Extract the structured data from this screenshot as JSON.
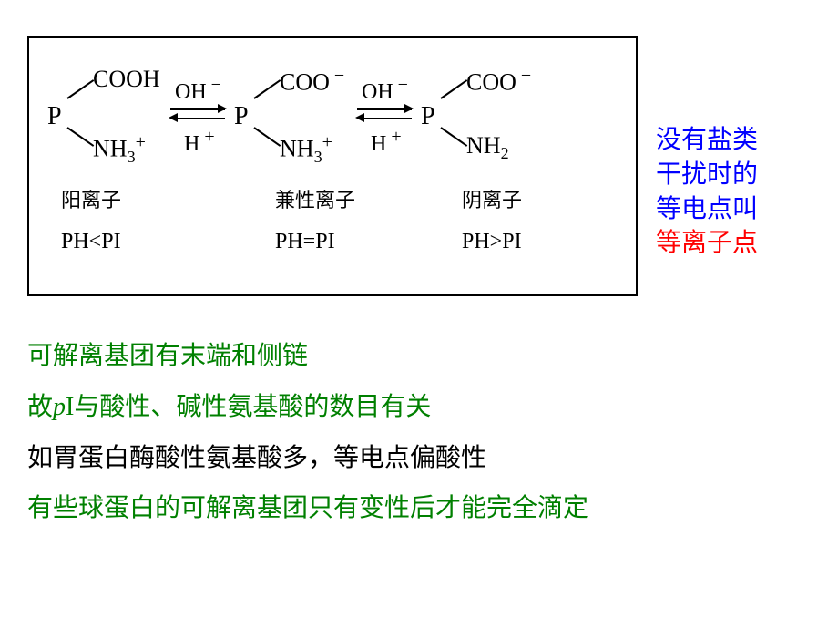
{
  "diagram": {
    "species": [
      {
        "p_label": "P",
        "upper_group": "COOH",
        "lower_group_html": "NH<span class='sub'>3</span><span class='sup'>+</span>",
        "ion_name": "阳离子",
        "ph_relation": "PH<PI"
      },
      {
        "p_label": "P",
        "upper_group_html": "COO<span class='sup'>&nbsp;−</span>",
        "lower_group_html": "NH<span class='sub'>3</span><span class='sup'>+</span>",
        "ion_name": "兼性离子",
        "ph_relation": "PH=PI"
      },
      {
        "p_label": "P",
        "upper_group_html": "COO<span class='sup'>&nbsp;−</span>",
        "lower_group_html": "NH<span class='sub'>2</span>",
        "ion_name": "阴离子",
        "ph_relation": "PH>PI"
      }
    ],
    "equilibrium": {
      "top_label_html": "OH<span class='sup'>&nbsp;−</span>",
      "bottom_label_html": "H<span class='sup'>&nbsp;+</span>"
    }
  },
  "side_note": {
    "line1": "没有盐类",
    "line2": "干扰时的",
    "line3": "等电点叫",
    "line4": "等离子点",
    "color_main": "#0000ff",
    "color_last": "#ff0000"
  },
  "bottom": {
    "line1": "可解离基团有末端和侧链",
    "line2_prefix": "故",
    "line2_pi": "p",
    "line2_i": "I",
    "line2_suffix": "与酸性、碱性氨基酸的数目有关",
    "line3": "如胃蛋白酶酸性氨基酸多，等电点偏酸性",
    "line4": "有些球蛋白的可解离基团只有变性后才能完全滴定"
  },
  "styling": {
    "box_border_color": "#000000",
    "background": "#ffffff",
    "text_black": "#000000",
    "text_blue": "#0000ff",
    "text_red": "#ff0000",
    "text_green": "#008000",
    "main_fontsize": 28,
    "ion_name_fontsize": 22,
    "ph_fontsize": 24,
    "chem_fontsize": 26
  }
}
